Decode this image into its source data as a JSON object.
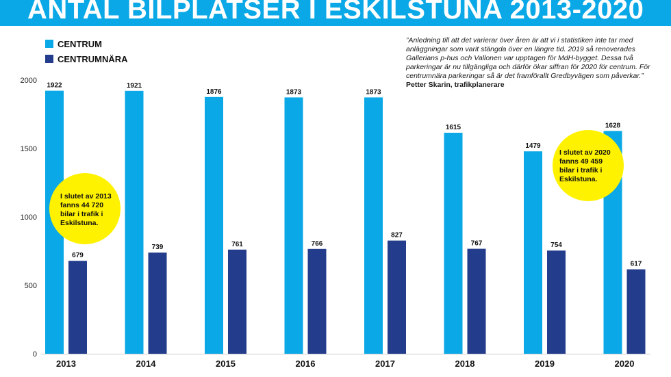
{
  "title": "ANTAL BILPLATSER I ESKILSTUNA 2013-2020",
  "colors": {
    "title_bar": "#0aa8e6",
    "centrum": "#0aa8e6",
    "centrumnara": "#233d8c",
    "bubble": "#fff200"
  },
  "quote": {
    "text": "”Anledning till att det varierar över åren är att vi i statistiken inte tar med anläggningar som varit stängda över en längre tid. 2019 så renoverades Gallerians p-hus och Vallonen var upptagen för MdH-bygget. Dessa två parkeringar är nu tillgängliga och därför ökar siffran för 2020 för centrum. För centrumnära parkeringar så är det framförallt Gredbyvägen som påverkar.”",
    "author": "Petter Skarin, trafikplanerare"
  },
  "bubbles": {
    "b2013": "I slutet av 2013\nfanns 44 720\nbilar i trafik i\nEskilstuna.",
    "b2020": "I slutet av 2020\nfanns 49 459\nbilar i trafik i\nEskilstuna."
  },
  "chart_data": {
    "type": "bar",
    "categories": [
      "2013",
      "2014",
      "2015",
      "2016",
      "2017",
      "2018",
      "2019",
      "2020"
    ],
    "series": [
      {
        "name": "CENTRUM",
        "color": "#0aa8e6",
        "values": [
          1922,
          1921,
          1876,
          1873,
          1873,
          1615,
          1479,
          1628
        ]
      },
      {
        "name": "CENTRUMNÄRA",
        "color": "#233d8c",
        "values": [
          679,
          739,
          761,
          766,
          827,
          767,
          754,
          617
        ]
      }
    ],
    "yticks": [
      "0",
      "500",
      "1000",
      "1500",
      "2000"
    ],
    "ylim": [
      0,
      2000
    ],
    "grid": false,
    "legend": "top-left",
    "data_labels": true
  }
}
